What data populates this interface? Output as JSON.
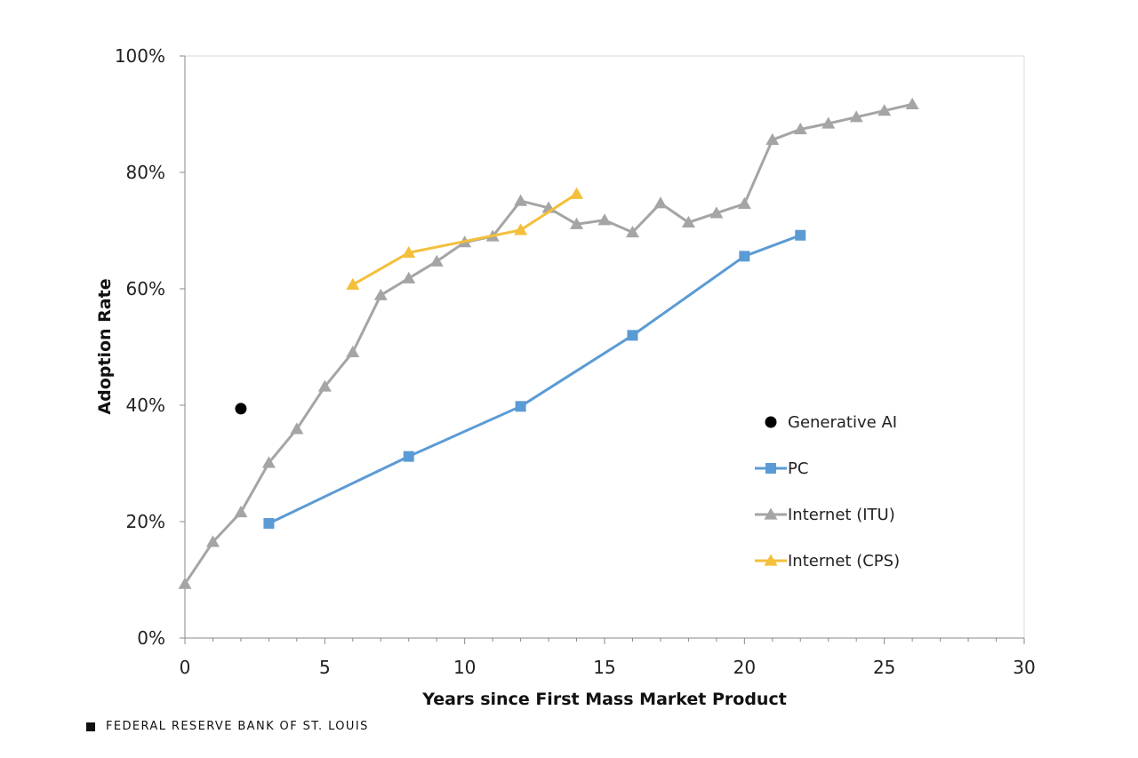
{
  "chart_data": {
    "type": "line",
    "title": "",
    "xlabel": "Years since First Mass Market Product",
    "ylabel": "Adoption Rate",
    "xlim": [
      0,
      30
    ],
    "ylim": [
      0,
      100
    ],
    "x_ticks": [
      0,
      5,
      10,
      15,
      20,
      25,
      30
    ],
    "y_ticks": [
      0,
      20,
      40,
      60,
      80,
      100
    ],
    "y_tick_labels": [
      "0%",
      "20%",
      "40%",
      "60%",
      "80%",
      "100%"
    ],
    "grid": false,
    "legend_position": "lower-right",
    "series": [
      {
        "name": "Generative AI",
        "marker": "circle",
        "line": false,
        "color": "#000000",
        "x": [
          2
        ],
        "y": [
          39.4
        ]
      },
      {
        "name": "PC",
        "marker": "square",
        "line": true,
        "color": "#5b9bd5",
        "x": [
          3,
          8,
          12,
          16,
          20,
          22
        ],
        "y": [
          19.7,
          31.2,
          39.8,
          52,
          65.6,
          69.2
        ]
      },
      {
        "name": "Internet (ITU)",
        "marker": "triangle",
        "line": true,
        "color": "#a5a5a5",
        "x": [
          0,
          1,
          2,
          3,
          4,
          5,
          6,
          7,
          8,
          9,
          10,
          11,
          12,
          13,
          14,
          15,
          16,
          17,
          18,
          19,
          20,
          21,
          22,
          23,
          24,
          25,
          26
        ],
        "y": [
          9.3,
          16.5,
          21.6,
          30.1,
          35.9,
          43.2,
          49.1,
          58.9,
          61.8,
          64.7,
          68.0,
          69.0,
          75.1,
          73.9,
          71.1,
          71.8,
          69.7,
          74.7,
          71.4,
          73.0,
          74.6,
          85.6,
          87.4,
          88.4,
          89.5,
          90.6,
          91.7
        ]
      },
      {
        "name": "Internet (CPS)",
        "marker": "triangle",
        "line": true,
        "color": "#f4bf3a",
        "x": [
          6,
          8,
          12,
          14
        ],
        "y": [
          60.7,
          66.2,
          70.1,
          76.3
        ]
      }
    ]
  },
  "footer": {
    "source": "FEDERAL RESERVE BANK OF ST. LOUIS"
  }
}
